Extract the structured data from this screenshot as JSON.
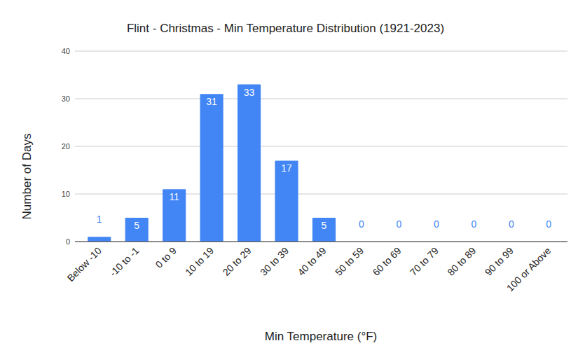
{
  "chart_data": {
    "type": "bar",
    "title": "Flint - Christmas - Min Temperature Distribution (1921-2023)",
    "x_label": "Min Temperature (°F)",
    "y_label": "Number of Days",
    "categories": [
      "Below -10",
      "-10 to -1",
      "0 to 9",
      "10 to 19",
      "20 to 29",
      "30 to 39",
      "40 to 49",
      "50 to 59",
      "60 to 69",
      "70 to 79",
      "80 to 89",
      "90 to 99",
      "100 or Above"
    ],
    "values": [
      1,
      5,
      11,
      31,
      33,
      17,
      5,
      0,
      0,
      0,
      0,
      0,
      0
    ],
    "color": "#4285f4",
    "ylim": [
      0,
      40
    ],
    "yticks": [
      0,
      10,
      20,
      30,
      40
    ],
    "grid": true,
    "data_labels": true
  }
}
